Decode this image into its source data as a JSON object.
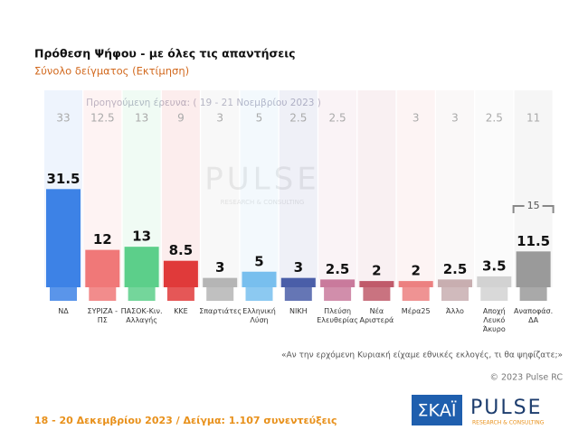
{
  "chart_data": {
    "type": "bar",
    "title": "Πρόθεση Ψήφου - με όλες τις απαντήσεις",
    "subtitle": "Σύνολο δείγματος   (Εκτίμηση)",
    "previous_label": "Προηγούμενη έρευνα:  ( 19 - 21 Νοεμβρίου 2023 )",
    "categories": [
      "ΝΔ",
      "ΣΥΡΙΖΑ - ΠΣ",
      "ΠΑΣΟΚ-Κιν. Αλλαγής",
      "ΚΚΕ",
      "Σπαρτιάτες",
      "Ελληνική Λύση",
      "ΝΙΚΗ",
      "Πλεύση Ελευθερίας",
      "Νέα Αριστερά",
      "Μέρα25",
      "Άλλο",
      "Αποχή Λευκό Άκυρο",
      "Αναποφάσ. ΔΑ"
    ],
    "values": [
      31.5,
      12,
      13,
      8.5,
      3,
      5,
      3,
      2.5,
      2,
      2,
      2.5,
      3.5,
      11.5
    ],
    "previous_values": [
      33,
      12.5,
      13,
      9,
      3,
      5,
      2.5,
      2.5,
      null,
      3,
      3,
      2.5,
      11
    ],
    "colors": [
      "#3d82e6",
      "#f07878",
      "#5ccf8a",
      "#e03a3a",
      "#b5b5b5",
      "#78bfee",
      "#4a5ea8",
      "#c97a9c",
      "#c05a6a",
      "#ec8080",
      "#c8aeb0",
      "#d2d2d2",
      "#9a9a9a"
    ],
    "annotation": "15",
    "question": "«Αν την ερχόμενη Κυριακή είχαμε εθνικές εκλογές, τι θα ψηφίζατε;»",
    "copyright": "© 2023 Pulse RC",
    "fieldwork": "18 - 20 Δεκεμβρίου  2023  /  Δείγμα:  1.107 συνεντεύξεις",
    "watermark": "PULSE",
    "watermark_sub": "RESEARCH & CONSULTING",
    "broadcaster": "ΣΚΑΪ",
    "pollster": "PULSE",
    "pollster_sub": "RESEARCH & CONSULTING"
  }
}
